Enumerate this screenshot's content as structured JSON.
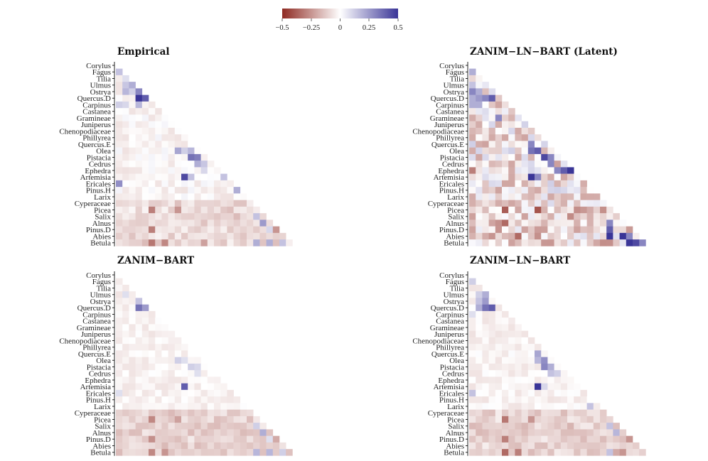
{
  "chart_data": {
    "type": "heatmap",
    "description_scale": "diverging color scale from -0.5 (dark red) through 0 (white) to 0.5 (dark blue)",
    "legend": {
      "position": "top-center",
      "ticks": [
        "−0.5",
        "−0.25",
        "0",
        "0.25",
        "0.5"
      ],
      "range": [
        -0.5,
        0.5
      ],
      "colors": {
        "low": "#8e2a22",
        "mid": "#ffffff",
        "high": "#3a3597"
      }
    },
    "taxa": [
      "Corylus",
      "Fagus",
      "Tilia",
      "Ulmus",
      "Ostrya",
      "Quercus.D",
      "Carpinus",
      "Castanea",
      "Gramineae",
      "Juniperus",
      "Chenopodiaceae",
      "Phillyrea",
      "Quercus.E",
      "Olea",
      "Pistacia",
      "Cedrus",
      "Ephedra",
      "Artemisia",
      "Ericales",
      "Pinus.H",
      "Larix",
      "Cyperaceae",
      "Picea",
      "Salix",
      "Alnus",
      "Pinus.D",
      "Abies",
      "Betula"
    ],
    "panels": [
      {
        "title": "Empirical",
        "noise": 0.05,
        "bias": -0.02,
        "rowBias": -0.07,
        "seed": 11,
        "cells": [
          [
            1,
            0,
            0.15
          ],
          [
            2,
            1,
            0.08
          ],
          [
            3,
            1,
            0.14
          ],
          [
            3,
            2,
            0.2
          ],
          [
            4,
            1,
            0.18
          ],
          [
            4,
            2,
            0.12
          ],
          [
            4,
            3,
            0.3
          ],
          [
            5,
            3,
            0.5
          ],
          [
            5,
            4,
            0.4
          ],
          [
            6,
            0,
            0.12
          ],
          [
            6,
            1,
            0.1
          ],
          [
            6,
            3,
            0.18
          ],
          [
            13,
            9,
            0.22
          ],
          [
            13,
            10,
            0.12
          ],
          [
            13,
            11,
            0.18
          ],
          [
            14,
            11,
            0.35
          ],
          [
            14,
            12,
            0.32
          ],
          [
            15,
            12,
            0.2
          ],
          [
            15,
            13,
            0.14
          ],
          [
            16,
            13,
            0.1
          ],
          [
            17,
            10,
            0.45
          ],
          [
            17,
            11,
            0.15
          ],
          [
            17,
            16,
            0.15
          ],
          [
            18,
            0,
            0.28
          ],
          [
            19,
            18,
            0.2
          ],
          [
            23,
            21,
            0.15
          ],
          [
            24,
            22,
            0.25
          ],
          [
            25,
            23,
            0.1
          ],
          [
            25,
            24,
            -0.25
          ],
          [
            27,
            21,
            0.2
          ],
          [
            27,
            23,
            0.2
          ],
          [
            27,
            24,
            -0.15
          ],
          [
            27,
            25,
            0.15
          ],
          [
            22,
            5,
            -0.3
          ],
          [
            22,
            9,
            -0.25
          ],
          [
            25,
            5,
            -0.3
          ],
          [
            27,
            5,
            -0.32
          ],
          [
            27,
            7,
            -0.28
          ],
          [
            27,
            13,
            -0.22
          ]
        ]
      },
      {
        "title": "ZANIM−LN−BART (Latent)",
        "noise": 0.17,
        "bias": -0.05,
        "rowBias": -0.04,
        "seed": 23,
        "cells": [
          [
            1,
            0,
            0.2
          ],
          [
            3,
            0,
            0.15
          ],
          [
            4,
            0,
            0.3
          ],
          [
            4,
            1,
            0.2
          ],
          [
            5,
            0,
            0.2
          ],
          [
            5,
            1,
            0.25
          ],
          [
            5,
            2,
            0.3
          ],
          [
            5,
            3,
            0.4
          ],
          [
            6,
            0,
            0.2
          ],
          [
            6,
            1,
            0.2
          ],
          [
            8,
            4,
            0.3
          ],
          [
            12,
            9,
            0.3
          ],
          [
            13,
            9,
            0.35
          ],
          [
            13,
            10,
            0.4
          ],
          [
            14,
            11,
            0.45
          ],
          [
            14,
            12,
            0.3
          ],
          [
            15,
            12,
            0.3
          ],
          [
            16,
            13,
            0.3
          ],
          [
            16,
            14,
            0.4
          ],
          [
            16,
            15,
            0.5
          ],
          [
            17,
            9,
            0.5
          ],
          [
            17,
            10,
            0.3
          ],
          [
            25,
            21,
            0.4
          ],
          [
            26,
            21,
            0.5
          ],
          [
            26,
            23,
            0.55
          ],
          [
            26,
            24,
            0.3
          ],
          [
            27,
            24,
            0.5
          ],
          [
            27,
            25,
            0.45
          ],
          [
            27,
            26,
            0.3
          ],
          [
            24,
            21,
            0.3
          ],
          [
            16,
            0,
            -0.3
          ],
          [
            22,
            5,
            -0.38
          ],
          [
            24,
            5,
            -0.35
          ],
          [
            26,
            7,
            -0.35
          ],
          [
            22,
            10,
            -0.4
          ]
        ]
      },
      {
        "title": "ZANIM−BART",
        "noise": 0.035,
        "bias": -0.03,
        "rowBias": -0.08,
        "seed": 37,
        "cells": [
          [
            5,
            3,
            0.35
          ],
          [
            5,
            4,
            0.25
          ],
          [
            4,
            3,
            0.15
          ],
          [
            3,
            1,
            0.08
          ],
          [
            13,
            9,
            0.12
          ],
          [
            13,
            10,
            0.08
          ],
          [
            14,
            11,
            0.12
          ],
          [
            14,
            12,
            0.1
          ],
          [
            15,
            12,
            0.08
          ],
          [
            17,
            10,
            0.4
          ],
          [
            18,
            0,
            0.08
          ],
          [
            23,
            21,
            0.12
          ],
          [
            24,
            22,
            0.2
          ],
          [
            25,
            23,
            0.08
          ],
          [
            25,
            24,
            -0.2
          ],
          [
            27,
            21,
            0.18
          ],
          [
            27,
            23,
            0.18
          ],
          [
            27,
            25,
            0.12
          ],
          [
            22,
            5,
            -0.28
          ],
          [
            25,
            5,
            -0.26
          ],
          [
            27,
            5,
            -0.28
          ],
          [
            27,
            7,
            -0.25
          ],
          [
            22,
            9,
            -0.22
          ]
        ]
      },
      {
        "title": "ZANIM−LN−BART",
        "noise": 0.04,
        "bias": -0.03,
        "rowBias": -0.08,
        "seed": 53,
        "cells": [
          [
            1,
            0,
            0.12
          ],
          [
            3,
            1,
            0.12
          ],
          [
            3,
            2,
            0.2
          ],
          [
            4,
            1,
            0.15
          ],
          [
            4,
            2,
            0.25
          ],
          [
            5,
            2,
            0.35
          ],
          [
            5,
            3,
            0.4
          ],
          [
            5,
            1,
            0.2
          ],
          [
            6,
            0,
            0.08
          ],
          [
            12,
            10,
            0.22
          ],
          [
            13,
            10,
            0.18
          ],
          [
            13,
            11,
            0.28
          ],
          [
            14,
            11,
            0.3
          ],
          [
            14,
            12,
            0.2
          ],
          [
            15,
            12,
            0.15
          ],
          [
            15,
            13,
            0.12
          ],
          [
            17,
            10,
            0.5
          ],
          [
            17,
            11,
            0.1
          ],
          [
            18,
            0,
            0.15
          ],
          [
            20,
            18,
            0.15
          ],
          [
            23,
            21,
            0.15
          ],
          [
            24,
            22,
            0.18
          ],
          [
            25,
            23,
            -0.15
          ],
          [
            25,
            24,
            -0.25
          ],
          [
            27,
            21,
            0.15
          ],
          [
            27,
            22,
            -0.2
          ],
          [
            27,
            23,
            -0.25
          ],
          [
            22,
            5,
            -0.32
          ],
          [
            25,
            5,
            -0.3
          ],
          [
            27,
            5,
            -0.35
          ],
          [
            27,
            7,
            -0.3
          ],
          [
            22,
            9,
            -0.25
          ]
        ]
      }
    ]
  }
}
